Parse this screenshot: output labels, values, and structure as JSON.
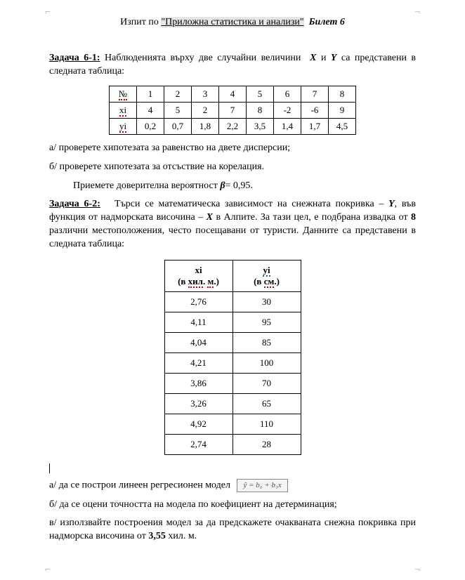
{
  "header": {
    "prefix": "Изпит по ",
    "subject": "\"Приложна статистика и анализи\"",
    "ticket_label": "Билет 6"
  },
  "task1": {
    "label": "Задача 6-1:",
    "text_before_X": "Наблюденията върху две случайни величини ",
    "X": "X",
    "and": " и ",
    "Y": "Y",
    "text_after_Y": " са представени в следната таблица:",
    "table": {
      "row_headers": [
        "№",
        "xi",
        "yi"
      ],
      "cols": [
        "1",
        "2",
        "3",
        "4",
        "5",
        "6",
        "7",
        "8"
      ],
      "x": [
        "4",
        "5",
        "2",
        "7",
        "8",
        "-2",
        "-6",
        "9"
      ],
      "y": [
        "0,2",
        "0,7",
        "1,8",
        "2,2",
        "3,5",
        "1,4",
        "1,7",
        "4,5"
      ]
    },
    "a": "а/ проверете хипотезата за равенство на двете дисперсии;",
    "b": "б/ проверете хипотезата за отсъствие на корелация.",
    "accept_before": "Приемете доверителна вероятност ",
    "beta": "β",
    "accept_after": "= 0,95."
  },
  "task2": {
    "label": "Задача 6-2:",
    "text1": "Търси се математическа зависимост на снежната покривка – ",
    "Y": "Y",
    "text2": ", във функция от надморската височина – ",
    "X": "X",
    "text3": " в Алпите. За тази цел, е подбрана извадка от ",
    "eight": "8",
    "text4": " различни местоположения, често посещавани от туристи. Данните са представени в следната таблица:",
    "table": {
      "x_label_var": "xi",
      "x_unit_l": "(в ",
      "x_unit_word": "хил",
      "x_unit_dot": ". ",
      "x_unit_m": "м",
      "x_unit_r": ".)",
      "y_label_var": "yi",
      "y_unit_l": "(в ",
      "y_unit_word": "см",
      "y_unit_r": ".)",
      "rows": [
        {
          "x": "2,76",
          "y": "30"
        },
        {
          "x": "4,11",
          "y": "95"
        },
        {
          "x": "4,04",
          "y": "85"
        },
        {
          "x": "4,21",
          "y": "100"
        },
        {
          "x": "3,86",
          "y": "70"
        },
        {
          "x": "3,26",
          "y": "65"
        },
        {
          "x": "4,92",
          "y": "110"
        },
        {
          "x": "2,74",
          "y": "28"
        }
      ]
    },
    "a_before": "а/ да се построи линеен регресионен модел",
    "formula": "ŷ = b₀ + b₁x",
    "b": "б/ да се оцени точността на модела по коефициент на детерминация;",
    "c_before": "в/ използвайте построения модел за да предскажете очакваната снежна покривка при надморска височина от ",
    "c_val": "3,55",
    "c_after": " хил. м."
  }
}
